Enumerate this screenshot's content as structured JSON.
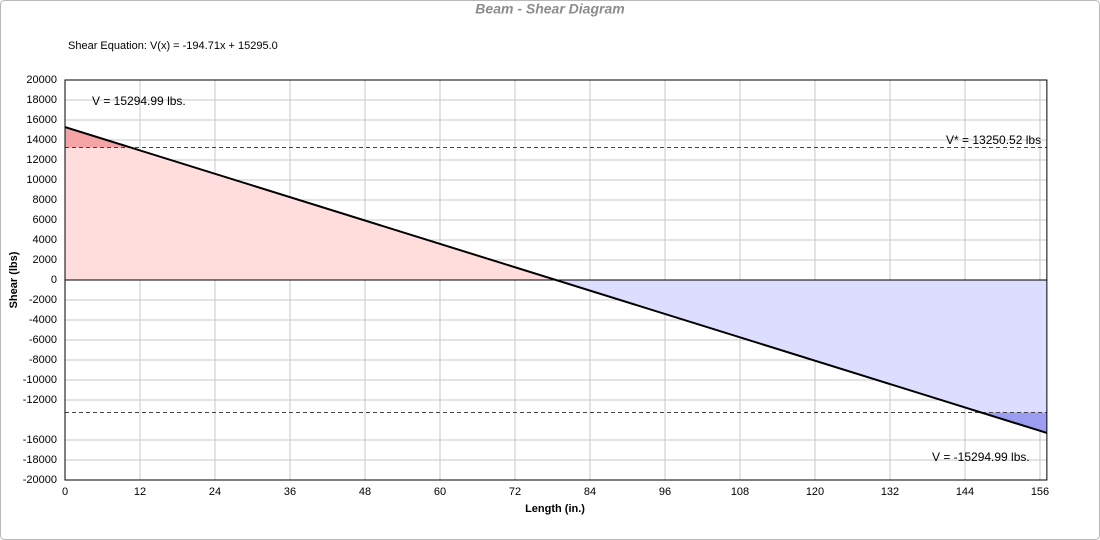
{
  "chart_data": {
    "type": "area",
    "title": "Beam - Shear Diagram",
    "subtitle": "Shear Equation:  V(x) = -194.71x + 15295.0",
    "x_label": "Length (in.)",
    "y_label": "Shear (lbs)",
    "x": [
      0,
      157.1
    ],
    "values": [
      15294.99,
      -15294.99
    ],
    "color": "#000000",
    "positive_fill": "#ffdddd",
    "negative_fill": "#ddddff",
    "ref_lines": [
      13250.52,
      -13250.52
    ],
    "ref_fill_positive": "#f4a4a4",
    "ref_fill_negative": "#9c9cf0",
    "annotations": [
      "V = 15294.99 lbs.",
      "V* = 13250.52 lbs",
      "V = -15294.99 lbs."
    ],
    "xlim": [
      0,
      157.1
    ],
    "xticks": [
      0,
      12,
      24,
      36,
      48,
      60,
      72,
      84,
      96,
      108,
      120,
      132,
      144,
      156
    ],
    "ylim": [
      -20000,
      20000
    ],
    "yticks": [
      20000,
      18000,
      16000,
      14000,
      12000,
      10000,
      8000,
      6000,
      4000,
      2000,
      0,
      -2000,
      -4000,
      -6000,
      -8000,
      -10000,
      -12000,
      -16000,
      -18000,
      -20000
    ],
    "grid": true
  }
}
